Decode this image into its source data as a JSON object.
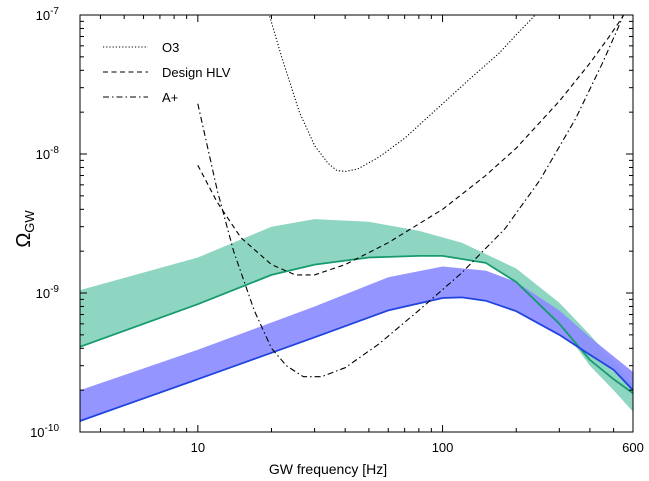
{
  "chart_data": {
    "type": "line",
    "xlabel": "GW frequency [Hz]",
    "ylabel": {
      "main": "Ω",
      "sub": "GW"
    },
    "xscale": "log",
    "yscale": "log",
    "xlim": [
      3.3,
      600
    ],
    "ylim": [
      1e-10,
      1e-07
    ],
    "grid": false,
    "legend_position": "top-left",
    "x_ticks": [
      {
        "value": 10,
        "label": "10"
      },
      {
        "value": 100,
        "label": "100"
      },
      {
        "value": 600,
        "label": "600"
      }
    ],
    "y_ticks": [
      {
        "value": 1e-10,
        "base": "10",
        "exp": "-10"
      },
      {
        "value": 1e-09,
        "base": "10",
        "exp": "-9"
      },
      {
        "value": 1e-08,
        "base": "10",
        "exp": "-8"
      },
      {
        "value": 1e-07,
        "base": "10",
        "exp": "-7"
      }
    ],
    "series": [
      {
        "name": "O3",
        "style": "dotted",
        "points": [
          [
            19,
            1.2e-07
          ],
          [
            22,
            5e-08
          ],
          [
            26,
            2e-08
          ],
          [
            30,
            1.15e-08
          ],
          [
            34,
            8.6e-09
          ],
          [
            37,
            7.6e-09
          ],
          [
            40,
            7.5e-09
          ],
          [
            45,
            7.8e-09
          ],
          [
            55,
            9.5e-09
          ],
          [
            70,
            1.3e-08
          ],
          [
            100,
            2.3e-08
          ],
          [
            130,
            3.5e-08
          ],
          [
            170,
            5.3e-08
          ],
          [
            200,
            7.2e-08
          ],
          [
            230,
            9.3e-08
          ],
          [
            245,
            1.05e-07
          ]
        ]
      },
      {
        "name": "Design HLV",
        "style": "dashed",
        "points": [
          [
            10,
            8.3e-09
          ],
          [
            12,
            4.5e-09
          ],
          [
            15,
            2.5e-09
          ],
          [
            20,
            1.6e-09
          ],
          [
            25,
            1.35e-09
          ],
          [
            30,
            1.35e-09
          ],
          [
            40,
            1.6e-09
          ],
          [
            60,
            2.3e-09
          ],
          [
            100,
            4e-09
          ],
          [
            150,
            7e-09
          ],
          [
            200,
            1.1e-08
          ],
          [
            300,
            2.4e-08
          ],
          [
            400,
            4.5e-08
          ],
          [
            480,
            7e-08
          ],
          [
            540,
            9.5e-08
          ],
          [
            555,
            1.05e-07
          ]
        ]
      },
      {
        "name": "A+",
        "style": "dashdot",
        "points": [
          [
            10,
            2.3e-08
          ],
          [
            12,
            5.5e-09
          ],
          [
            14,
            2e-09
          ],
          [
            17,
            7.5e-10
          ],
          [
            20,
            4e-10
          ],
          [
            23,
            3e-10
          ],
          [
            27,
            2.5e-10
          ],
          [
            32,
            2.5e-10
          ],
          [
            40,
            2.9e-10
          ],
          [
            55,
            4.3e-10
          ],
          [
            80,
            7.5e-10
          ],
          [
            120,
            1.4e-09
          ],
          [
            180,
            2.9e-09
          ],
          [
            250,
            6.5e-09
          ],
          [
            350,
            1.8e-08
          ],
          [
            450,
            4.5e-08
          ],
          [
            520,
            8e-08
          ],
          [
            555,
            1.05e-07
          ]
        ]
      }
    ],
    "bands": [
      {
        "color": "#8fd6c2",
        "upper": [
          [
            3.3,
            1.05e-09
          ],
          [
            10,
            1.8e-09
          ],
          [
            20,
            3e-09
          ],
          [
            30,
            3.4e-09
          ],
          [
            50,
            3.25e-09
          ],
          [
            80,
            2.8e-09
          ],
          [
            120,
            2.3e-09
          ],
          [
            200,
            1.5e-09
          ],
          [
            300,
            8.5e-10
          ],
          [
            400,
            5e-10
          ],
          [
            500,
            3.2e-10
          ],
          [
            600,
            2.2e-10
          ]
        ],
        "lower": [
          [
            3.3,
            4.1e-10
          ],
          [
            10,
            8.3e-10
          ],
          [
            20,
            1.35e-09
          ],
          [
            30,
            1.6e-09
          ],
          [
            50,
            1.8e-09
          ],
          [
            80,
            1.85e-09
          ],
          [
            100,
            1.85e-09
          ],
          [
            150,
            1.65e-09
          ],
          [
            200,
            1.2e-09
          ],
          [
            300,
            6e-10
          ],
          [
            400,
            3e-10
          ],
          [
            500,
            2e-10
          ],
          [
            600,
            1.4e-10
          ]
        ]
      },
      {
        "color": "#8c8cff",
        "upper": [
          [
            3.3,
            2e-10
          ],
          [
            10,
            3.9e-10
          ],
          [
            30,
            8e-10
          ],
          [
            60,
            1.3e-09
          ],
          [
            100,
            1.55e-09
          ],
          [
            150,
            1.45e-09
          ],
          [
            200,
            1.2e-09
          ],
          [
            300,
            7.5e-10
          ],
          [
            400,
            4.8e-10
          ],
          [
            500,
            3.5e-10
          ],
          [
            600,
            2.7e-10
          ]
        ],
        "lower": [
          [
            3.3,
            1.2e-10
          ],
          [
            10,
            2.4e-10
          ],
          [
            30,
            4.8e-10
          ],
          [
            60,
            7.5e-10
          ],
          [
            100,
            9.2e-10
          ],
          [
            120,
            9.3e-10
          ],
          [
            150,
            8.8e-10
          ],
          [
            200,
            7.4e-10
          ],
          [
            300,
            5e-10
          ],
          [
            400,
            3.6e-10
          ],
          [
            500,
            2.8e-10
          ],
          [
            600,
            2e-10
          ]
        ]
      }
    ],
    "median_lines": [
      {
        "color": "#169a6e",
        "points": [
          [
            3.3,
            4.1e-10
          ],
          [
            10,
            8.3e-10
          ],
          [
            20,
            1.35e-09
          ],
          [
            30,
            1.6e-09
          ],
          [
            50,
            1.8e-09
          ],
          [
            80,
            1.85e-09
          ],
          [
            100,
            1.85e-09
          ],
          [
            150,
            1.65e-09
          ],
          [
            200,
            1.2e-09
          ],
          [
            300,
            6e-10
          ],
          [
            400,
            3.3e-10
          ],
          [
            500,
            2.4e-10
          ],
          [
            600,
            1.9e-10
          ]
        ]
      },
      {
        "color": "#1f44e0",
        "points": [
          [
            3.3,
            1.2e-10
          ],
          [
            10,
            2.4e-10
          ],
          [
            30,
            4.8e-10
          ],
          [
            60,
            7.5e-10
          ],
          [
            100,
            9.2e-10
          ],
          [
            120,
            9.3e-10
          ],
          [
            150,
            8.8e-10
          ],
          [
            200,
            7.4e-10
          ],
          [
            300,
            5e-10
          ],
          [
            400,
            3.6e-10
          ],
          [
            500,
            2.8e-10
          ],
          [
            600,
            2e-10
          ]
        ]
      }
    ]
  }
}
